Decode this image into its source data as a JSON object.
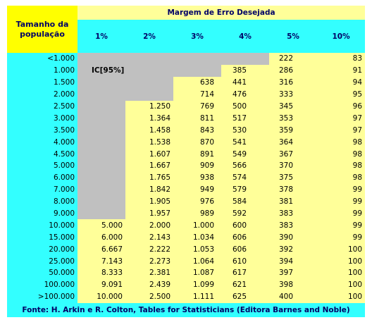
{
  "header": {
    "row_label": "Tamanho da população",
    "title": "Margem de Erro Desejada",
    "columns": [
      "1%",
      "2%",
      "3%",
      "4%",
      "5%",
      "10%"
    ]
  },
  "rows": [
    {
      "label": "<1.000",
      "cells": [
        null,
        null,
        null,
        null,
        "222",
        "83"
      ]
    },
    {
      "label": "1.000",
      "cells": [
        "IC[95%]",
        null,
        null,
        "385",
        "286",
        "91"
      ]
    },
    {
      "label": "1.500",
      "cells": [
        null,
        null,
        "638",
        "441",
        "316",
        "94"
      ]
    },
    {
      "label": "2.000",
      "cells": [
        null,
        null,
        "714",
        "476",
        "333",
        "95"
      ]
    },
    {
      "label": "2.500",
      "cells": [
        null,
        "1.250",
        "769",
        "500",
        "345",
        "96"
      ]
    },
    {
      "label": "3.000",
      "cells": [
        null,
        "1.364",
        "811",
        "517",
        "353",
        "97"
      ]
    },
    {
      "label": "3.500",
      "cells": [
        null,
        "1.458",
        "843",
        "530",
        "359",
        "97"
      ]
    },
    {
      "label": "4.000",
      "cells": [
        null,
        "1.538",
        "870",
        "541",
        "364",
        "98"
      ]
    },
    {
      "label": "4.500",
      "cells": [
        null,
        "1.607",
        "891",
        "549",
        "367",
        "98"
      ]
    },
    {
      "label": "5.000",
      "cells": [
        null,
        "1.667",
        "909",
        "566",
        "370",
        "98"
      ]
    },
    {
      "label": "6.000",
      "cells": [
        null,
        "1.765",
        "938",
        "574",
        "375",
        "98"
      ]
    },
    {
      "label": "7.000",
      "cells": [
        null,
        "1.842",
        "949",
        "579",
        "378",
        "99"
      ]
    },
    {
      "label": "8.000",
      "cells": [
        null,
        "1.905",
        "976",
        "584",
        "381",
        "99"
      ]
    },
    {
      "label": "9.000",
      "cells": [
        null,
        "1.957",
        "989",
        "592",
        "383",
        "99"
      ]
    },
    {
      "label": "10.000",
      "cells": [
        "5.000",
        "2.000",
        "1.000",
        "600",
        "383",
        "99"
      ]
    },
    {
      "label": "15.000",
      "cells": [
        "6.000",
        "2.143",
        "1.034",
        "606",
        "390",
        "99"
      ]
    },
    {
      "label": "20.000",
      "cells": [
        "6.667",
        "2.222",
        "1.053",
        "606",
        "392",
        "100"
      ]
    },
    {
      "label": "25.000",
      "cells": [
        "7.143",
        "2.273",
        "1.064",
        "610",
        "394",
        "100"
      ]
    },
    {
      "label": "50.000",
      "cells": [
        "8.333",
        "2.381",
        "1.087",
        "617",
        "397",
        "100"
      ]
    },
    {
      "label": "100.000",
      "cells": [
        "9.091",
        "2.439",
        "1.099",
        "621",
        "398",
        "100"
      ]
    },
    {
      "label": ">100.000",
      "cells": [
        "10.000",
        "2.500",
        "1.111",
        "625",
        "400",
        "100"
      ]
    }
  ],
  "footer": "Fonte: H. Arkin e R. Colton, Tables for Statisticians (Editora Barnes and Noble)"
}
